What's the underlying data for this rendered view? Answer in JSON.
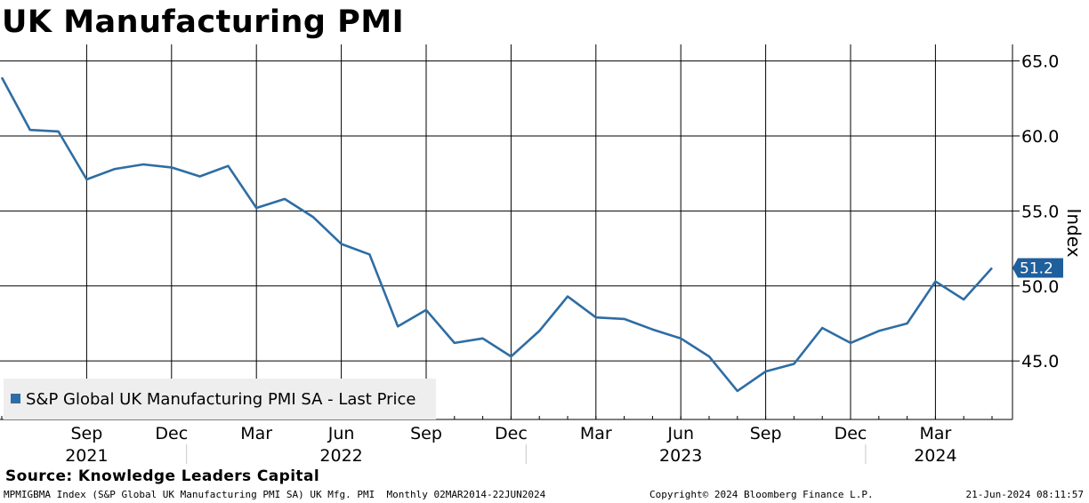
{
  "title": "UK Manufacturing PMI",
  "source": "Source: Knowledge Leaders Capital",
  "footer": {
    "left": "MPMIGBMA Index (S&P Global UK Manufacturing PMI SA) UK Mfg. PMI  Monthly 02MAR2014-22JUN2024",
    "middle": "Copyright© 2024 Bloomberg Finance L.P.",
    "right": "21-Jun-2024 08:11:57"
  },
  "colors": {
    "line": "#2e6da4",
    "marker": "#1f5f9c",
    "grid": "#000000"
  },
  "chart_data": {
    "type": "line",
    "ylabel": "Index",
    "ylim": [
      40.0,
      65.0
    ],
    "yticks": [
      "65.0",
      "60.0",
      "55.0",
      "50.0",
      "45.0"
    ],
    "ytick_values": [
      65.0,
      60.0,
      55.0,
      50.0,
      45.0
    ],
    "xlim": [
      "2021-06",
      "2024-06"
    ],
    "xticks": [
      {
        "month": "Sep",
        "year": "2021",
        "x": "2021-09"
      },
      {
        "month": "Dec",
        "year": "",
        "x": "2021-12"
      },
      {
        "month": "Mar",
        "year": "",
        "x": "2022-03"
      },
      {
        "month": "Jun",
        "year": "2022",
        "x": "2022-06"
      },
      {
        "month": "Sep",
        "year": "",
        "x": "2022-09"
      },
      {
        "month": "Dec",
        "year": "",
        "x": "2022-12"
      },
      {
        "month": "Mar",
        "year": "",
        "x": "2023-03"
      },
      {
        "month": "Jun",
        "year": "2023",
        "x": "2023-06"
      },
      {
        "month": "Sep",
        "year": "",
        "x": "2023-09"
      },
      {
        "month": "Dec",
        "year": "",
        "x": "2023-12"
      },
      {
        "month": "Mar",
        "year": "2024",
        "x": "2024-03"
      }
    ],
    "year_separators": [
      "2022-01",
      "2023-01",
      "2024-01"
    ],
    "grid": true,
    "legend_position": "bottom-left",
    "last_value_label": "51.2",
    "series": [
      {
        "name": "S&P Global UK Manufacturing PMI SA - Last Price",
        "x": [
          "2021-06",
          "2021-07",
          "2021-08",
          "2021-09",
          "2021-10",
          "2021-11",
          "2021-12",
          "2022-01",
          "2022-02",
          "2022-03",
          "2022-04",
          "2022-05",
          "2022-06",
          "2022-07",
          "2022-08",
          "2022-09",
          "2022-10",
          "2022-11",
          "2022-12",
          "2023-01",
          "2023-02",
          "2023-03",
          "2023-04",
          "2023-05",
          "2023-06",
          "2023-07",
          "2023-08",
          "2023-09",
          "2023-10",
          "2023-11",
          "2023-12",
          "2024-01",
          "2024-02",
          "2024-03",
          "2024-04",
          "2024-05"
        ],
        "values": [
          63.9,
          60.4,
          60.3,
          57.1,
          57.8,
          58.1,
          57.9,
          57.3,
          58.0,
          55.2,
          55.8,
          54.6,
          52.8,
          52.1,
          47.3,
          48.4,
          46.2,
          46.5,
          45.3,
          47.0,
          49.3,
          47.9,
          47.8,
          47.1,
          46.5,
          45.3,
          43.0,
          44.3,
          44.8,
          47.2,
          46.2,
          47.0,
          47.5,
          50.3,
          49.1,
          51.2
        ]
      }
    ]
  }
}
